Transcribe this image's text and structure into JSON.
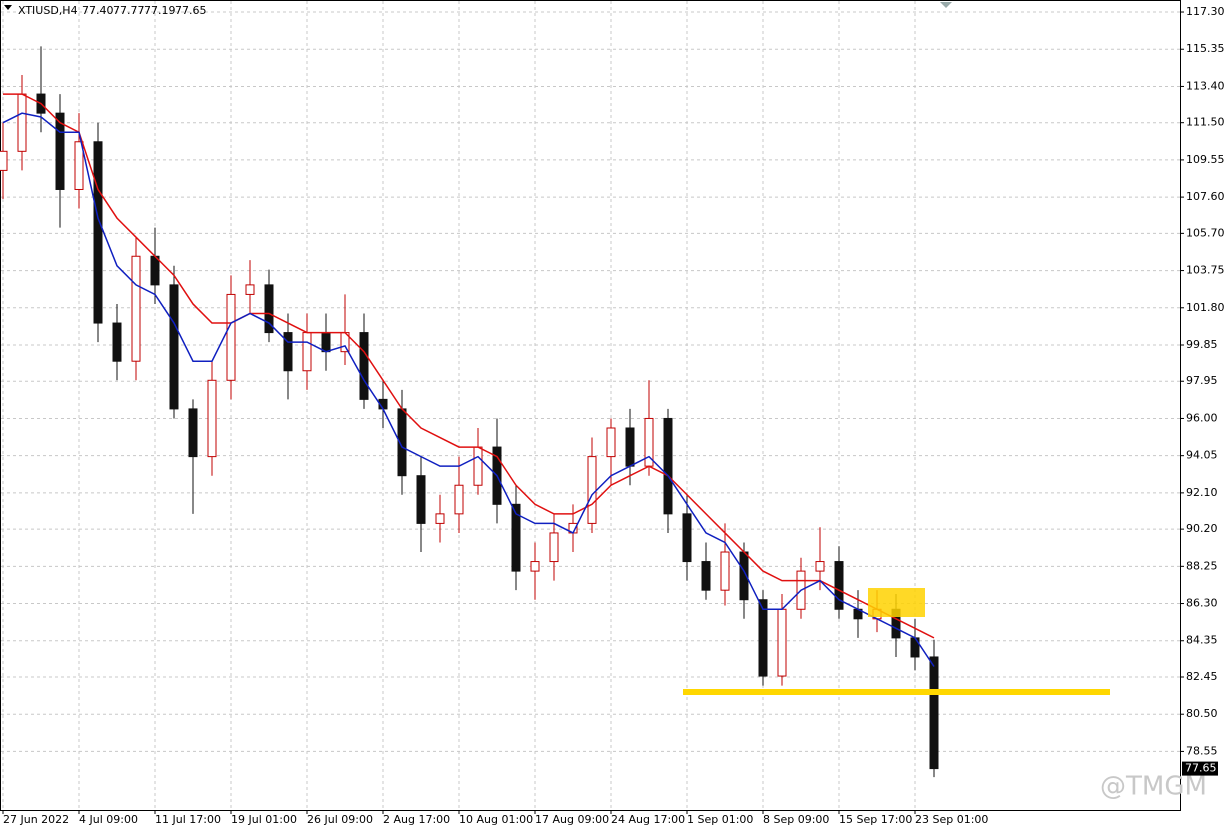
{
  "chart_data": {
    "type": "candlestick",
    "symbol": "XTIUSD,H4",
    "header_values": [
      "77.40",
      "77.77",
      "77.19",
      "77.65"
    ],
    "watermark": "@TMGM",
    "last_price": {
      "value": 77.65,
      "label": "77.65"
    },
    "categories": [
      "27 Jun 2022",
      null,
      null,
      null,
      "4 Jul 09:00",
      null,
      null,
      null,
      "11 Jul 17:00",
      null,
      null,
      null,
      "19 Jul 01:00",
      null,
      null,
      null,
      "26 Jul 09:00",
      null,
      null,
      null,
      "2 Aug 17:00",
      null,
      null,
      null,
      "10 Aug 01:00",
      null,
      null,
      null,
      "17 Aug 09:00",
      null,
      null,
      null,
      "24 Aug 17:00",
      null,
      null,
      null,
      "1 Sep 01:00",
      null,
      null,
      null,
      "8 Sep 09:00",
      null,
      null,
      null,
      "15 Sep 17:00",
      null,
      null,
      null,
      "23 Sep 01:00",
      null
    ],
    "open": [
      109,
      110,
      113,
      112,
      108,
      110.5,
      101,
      99,
      104.5,
      103,
      96.5,
      94,
      98,
      102.5,
      103,
      100.5,
      98.5,
      100.5,
      99.5,
      100.5,
      97,
      96.5,
      93,
      90.5,
      91,
      92.5,
      94.5,
      91.5,
      88,
      88.5,
      90,
      90.5,
      94,
      95.5,
      93.5,
      96,
      91,
      88.5,
      87,
      89,
      86.5,
      82.5,
      86,
      88,
      88.5,
      86,
      85.5,
      86,
      84.5,
      83.5
    ],
    "high": [
      111.5,
      114,
      115.5,
      113,
      112,
      111.5,
      102,
      105.5,
      106,
      104,
      97,
      99,
      103.5,
      104.3,
      103.8,
      101.5,
      101.5,
      101.5,
      102.5,
      101.5,
      98,
      97.5,
      94,
      92,
      94,
      95.5,
      96,
      92.5,
      89.5,
      91,
      91.5,
      95,
      96,
      96.5,
      98,
      96.5,
      92,
      89.5,
      90.5,
      89.5,
      87,
      86.8,
      88.7,
      90.3,
      89.3,
      87,
      87,
      86.8,
      85.5,
      84.4
    ],
    "low": [
      107.5,
      109,
      111,
      106,
      107,
      100,
      98,
      98,
      102,
      96,
      91,
      93,
      97,
      101.5,
      100,
      97,
      97.5,
      98.5,
      98.8,
      96.5,
      95.5,
      92,
      89,
      89.5,
      90,
      92,
      90.5,
      87,
      86.5,
      87.5,
      89,
      90,
      92.5,
      92.5,
      93,
      90,
      87.5,
      86.5,
      86.2,
      85.5,
      82,
      82,
      85.5,
      87,
      85.5,
      84.5,
      84.8,
      83.5,
      82.8,
      77.2
    ],
    "close": [
      110,
      113,
      112,
      108,
      110.5,
      101,
      99,
      104.5,
      103,
      96.5,
      94,
      98,
      102.5,
      103,
      100.5,
      98.5,
      100.5,
      99.5,
      100.5,
      97,
      96.5,
      93,
      90.5,
      91,
      92.5,
      94.5,
      91.5,
      88,
      88.5,
      90,
      90.5,
      94,
      95.5,
      93.5,
      96,
      91,
      88.5,
      87,
      89,
      86.5,
      82.5,
      86,
      88,
      88.5,
      86,
      85.5,
      86,
      84.5,
      83.5,
      77.65
    ],
    "up_color": "#c00000",
    "down_color": "#111111",
    "series": [
      {
        "color": "#e01010",
        "values": [
          113,
          113,
          112.5,
          111.5,
          111,
          108,
          106.5,
          105.5,
          104.5,
          103.5,
          102,
          101,
          101,
          101.5,
          101.5,
          101,
          100.5,
          100.5,
          100.5,
          99.5,
          98,
          96.5,
          95.5,
          95,
          94.5,
          94.5,
          94,
          92.5,
          91.5,
          91,
          91,
          91.5,
          92.5,
          93,
          93.5,
          93,
          92,
          91,
          90,
          89,
          88,
          87.5,
          87.5,
          87.5,
          87,
          86.5,
          86,
          85.5,
          85,
          84.5
        ]
      },
      {
        "color": "#1020c0",
        "values": [
          111.5,
          112,
          111.8,
          111,
          111,
          106.5,
          104,
          103,
          102.5,
          101,
          99,
          99,
          101,
          101.5,
          101,
          100,
          100,
          99.5,
          99.8,
          98,
          96.5,
          94.5,
          94,
          93.5,
          93.5,
          94,
          93,
          91,
          90.5,
          90.5,
          90,
          92,
          93,
          93.5,
          94,
          93,
          91.5,
          90,
          89.5,
          88,
          86,
          86,
          87,
          87.5,
          86.5,
          86,
          85.5,
          85,
          84.5,
          83
        ]
      }
    ],
    "ylim": [
      75.48,
      117.93
    ],
    "yticks": [
      {
        "value": 117.3,
        "label": "117.30"
      },
      {
        "value": 115.35,
        "label": "115.35"
      },
      {
        "value": 113.4,
        "label": "113.40"
      },
      {
        "value": 111.5,
        "label": "111.50"
      },
      {
        "value": 109.55,
        "label": "109.55"
      },
      {
        "value": 107.6,
        "label": "107.60"
      },
      {
        "value": 105.7,
        "label": "105.70"
      },
      {
        "value": 103.75,
        "label": "103.75"
      },
      {
        "value": 101.8,
        "label": "101.80"
      },
      {
        "value": 99.85,
        "label": "99.85"
      },
      {
        "value": 97.95,
        "label": "97.95"
      },
      {
        "value": 96,
        "label": "96.00"
      },
      {
        "value": 94.05,
        "label": "94.05"
      },
      {
        "value": 92.1,
        "label": "92.10"
      },
      {
        "value": 90.2,
        "label": "90.20"
      },
      {
        "value": 88.25,
        "label": "88.25"
      },
      {
        "value": 86.3,
        "label": "86.30"
      },
      {
        "value": 84.35,
        "label": "84.35"
      },
      {
        "value": 82.45,
        "label": "82.45"
      },
      {
        "value": 80.5,
        "label": "80.50"
      },
      {
        "value": 78.55,
        "label": "78.55"
      }
    ],
    "grid": true
  }
}
